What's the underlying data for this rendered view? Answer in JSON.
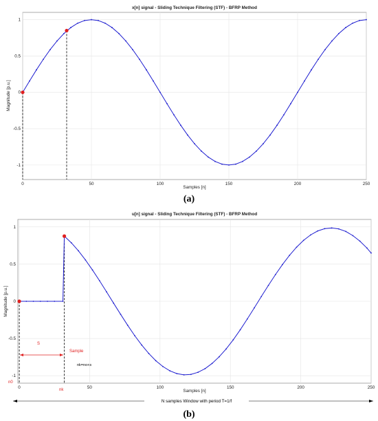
{
  "chart_data": [
    {
      "type": "line",
      "label": "(a)",
      "title": "x[n] signal - Sliding Technique Filtering (STF) - BFRP Method",
      "xlabel": "Samples [n]",
      "ylabel": "Magnitude [p.u.]",
      "xlim": [
        0,
        250
      ],
      "ylim": [
        -1.2,
        1.1
      ],
      "xticks": [
        0,
        50,
        100,
        150,
        200,
        250
      ],
      "yticks": [
        -1,
        -0.5,
        0,
        0.5,
        1
      ],
      "ytick_labels": [
        "-1",
        "-0.5",
        "0",
        "0.5",
        "1"
      ],
      "grid": true,
      "series": [
        {
          "color": "#1f1fd0",
          "x": [
            0,
            5,
            10,
            15,
            20,
            25,
            30,
            35,
            40,
            45,
            50,
            55,
            60,
            65,
            70,
            75,
            80,
            85,
            90,
            95,
            100,
            105,
            110,
            115,
            120,
            125,
            130,
            135,
            140,
            145,
            150,
            155,
            160,
            165,
            170,
            175,
            180,
            185,
            190,
            195,
            200,
            205,
            210,
            215,
            220,
            225,
            230,
            235,
            240,
            245,
            250
          ],
          "y": [
            0,
            0.156,
            0.309,
            0.454,
            0.588,
            0.707,
            0.809,
            0.891,
            0.951,
            0.988,
            1,
            0.988,
            0.951,
            0.891,
            0.809,
            0.707,
            0.588,
            0.454,
            0.309,
            0.156,
            0,
            -0.156,
            -0.309,
            -0.454,
            -0.588,
            -0.707,
            -0.809,
            -0.891,
            -0.951,
            -0.988,
            -1,
            -0.988,
            -0.951,
            -0.891,
            -0.809,
            -0.707,
            -0.588,
            -0.454,
            -0.309,
            -0.156,
            0,
            0.156,
            0.309,
            0.454,
            0.588,
            0.707,
            0.809,
            0.891,
            0.951,
            0.988,
            1
          ]
        }
      ],
      "markers": [
        {
          "x": 0,
          "y": 0,
          "color": "#e02020"
        },
        {
          "x": 32,
          "y": 0.85,
          "color": "#e02020"
        }
      ],
      "vlines": [
        {
          "x": 0,
          "y_top": 0,
          "style": "dashed"
        },
        {
          "x": 32,
          "y_top": 0.85,
          "style": "dashed"
        }
      ]
    },
    {
      "type": "line",
      "label": "(b)",
      "title": "u[n] signal - Sliding Technique Filtering (STF) - BFRP Method",
      "xlabel": "Samples [n]",
      "ylabel": "Magnitude [p.u.]",
      "xlim": [
        -1,
        250
      ],
      "ylim": [
        -1.1,
        1.1
      ],
      "xticks": [
        0,
        50,
        100,
        150,
        200,
        250
      ],
      "yticks": [
        -1,
        -0.5,
        0,
        0.5,
        1
      ],
      "ytick_labels": [
        "-1",
        "-0.5",
        "0",
        "0.5",
        "1"
      ],
      "grid": true,
      "series": [
        {
          "color": "#1f1fd0",
          "x": [
            0,
            5,
            10,
            15,
            20,
            25,
            31,
            32,
            37,
            42,
            47,
            52,
            57,
            62,
            67,
            72,
            77,
            82,
            87,
            92,
            97,
            102,
            107,
            112,
            117,
            122,
            127,
            132,
            137,
            142,
            147,
            152,
            157,
            162,
            167,
            172,
            177,
            182,
            187,
            192,
            197,
            202,
            207,
            212,
            217,
            222,
            227,
            232,
            237,
            242,
            247,
            250
          ],
          "y": [
            0,
            0,
            0,
            0,
            0,
            0,
            0,
            0.876,
            0.786,
            0.679,
            0.556,
            0.421,
            0.277,
            0.127,
            -0.025,
            -0.175,
            -0.322,
            -0.461,
            -0.588,
            -0.701,
            -0.798,
            -0.876,
            -0.934,
            -0.972,
            -0.988,
            -0.982,
            -0.954,
            -0.905,
            -0.835,
            -0.746,
            -0.64,
            -0.518,
            -0.383,
            -0.238,
            -0.088,
            0.065,
            0.214,
            0.358,
            0.494,
            0.618,
            0.727,
            0.819,
            0.892,
            0.945,
            0.976,
            0.985,
            0.973,
            0.939,
            0.883,
            0.809,
            0.716,
            0.649
          ]
        }
      ],
      "markers": [
        {
          "x": 0,
          "y": 0,
          "color": "#e02020"
        },
        {
          "x": 32,
          "y": 0.876,
          "color": "#e02020"
        }
      ],
      "vlines": [
        {
          "x": 0,
          "y_top": 0,
          "style": "dashed"
        },
        {
          "x": 32,
          "y_top": 0.876,
          "style": "dashed"
        }
      ],
      "annotations": {
        "s_label": "S",
        "sample_label": "Sample",
        "nk_eq": "nk=no+s",
        "n0_label": "n0",
        "nk_label": "nk",
        "window_label": "N samples Window with period T=1/f"
      }
    }
  ]
}
